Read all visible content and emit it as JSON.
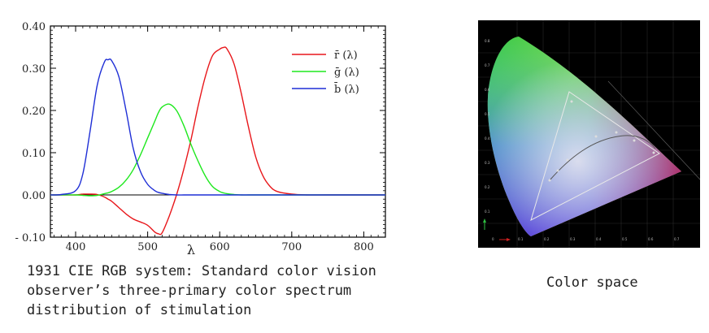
{
  "caption_left": [
    "1931 CIE RGB system: Standard color vision",
    "observer’s three-primary color spectrum",
    "distribution of stimulation"
  ],
  "caption_right": "Color space",
  "chart_data": {
    "type": "line",
    "title": "",
    "xlabel": "λ",
    "ylabel": "",
    "xlim": [
      365,
      830
    ],
    "ylim": [
      -0.1,
      0.4
    ],
    "x_ticks": [
      400,
      500,
      600,
      700,
      800
    ],
    "y_ticks": [
      -0.1,
      0.0,
      0.1,
      0.2,
      0.3,
      0.4
    ],
    "y_tick_labels": [
      "- 0.10",
      "0.00",
      "0.10",
      "0.20",
      "0.30",
      "0.40"
    ],
    "grid": false,
    "legend": "top-right",
    "x": [
      365,
      380,
      400,
      410,
      420,
      430,
      440,
      445,
      450,
      460,
      470,
      480,
      490,
      500,
      510,
      515,
      520,
      530,
      540,
      550,
      560,
      570,
      580,
      590,
      600,
      605,
      610,
      620,
      630,
      640,
      650,
      660,
      670,
      680,
      700,
      720,
      750,
      830
    ],
    "series": [
      {
        "name": "r̄ (λ)",
        "color": "#e8171b",
        "values": [
          0.0,
          0.0,
          0.0,
          0.002,
          0.002,
          0.001,
          -0.005,
          -0.01,
          -0.015,
          -0.03,
          -0.045,
          -0.057,
          -0.064,
          -0.072,
          -0.088,
          -0.092,
          -0.09,
          -0.05,
          0.0,
          0.06,
          0.13,
          0.21,
          0.28,
          0.33,
          0.345,
          0.349,
          0.346,
          0.31,
          0.24,
          0.16,
          0.09,
          0.045,
          0.02,
          0.008,
          0.002,
          0.0,
          0.0,
          0.0
        ]
      },
      {
        "name": "ḡ (λ)",
        "color": "#1ee81e",
        "values": [
          0.0,
          0.0,
          0.0,
          -0.001,
          -0.002,
          -0.001,
          0.003,
          0.005,
          0.008,
          0.018,
          0.035,
          0.06,
          0.095,
          0.135,
          0.175,
          0.195,
          0.208,
          0.215,
          0.2,
          0.165,
          0.12,
          0.08,
          0.045,
          0.02,
          0.008,
          0.005,
          0.003,
          0.001,
          0.0,
          0.0,
          0.0,
          0.0,
          0.0,
          0.0,
          0.0,
          0.0,
          0.0,
          0.0
        ]
      },
      {
        "name": "b̄ (λ)",
        "color": "#1f2fd6",
        "values": [
          0.0,
          0.001,
          0.01,
          0.05,
          0.15,
          0.26,
          0.315,
          0.32,
          0.318,
          0.28,
          0.2,
          0.11,
          0.055,
          0.025,
          0.01,
          0.006,
          0.004,
          0.001,
          0.0,
          0.0,
          0.0,
          0.0,
          0.0,
          0.0,
          0.0,
          0.0,
          0.0,
          0.0,
          0.0,
          0.0,
          0.0,
          0.0,
          0.0,
          0.0,
          0.0,
          0.0,
          0.0,
          0.0
        ]
      }
    ],
    "axhline": 0.0
  },
  "gamut": {
    "x_ticks": [
      "0",
      "0.1",
      "0.2",
      "0.3",
      "0.4",
      "0.5",
      "0.6",
      "0.7"
    ],
    "y_ticks": [
      "0.1",
      "0.2",
      "0.3",
      "0.4",
      "0.5",
      "0.6",
      "0.7",
      "0.8"
    ]
  }
}
